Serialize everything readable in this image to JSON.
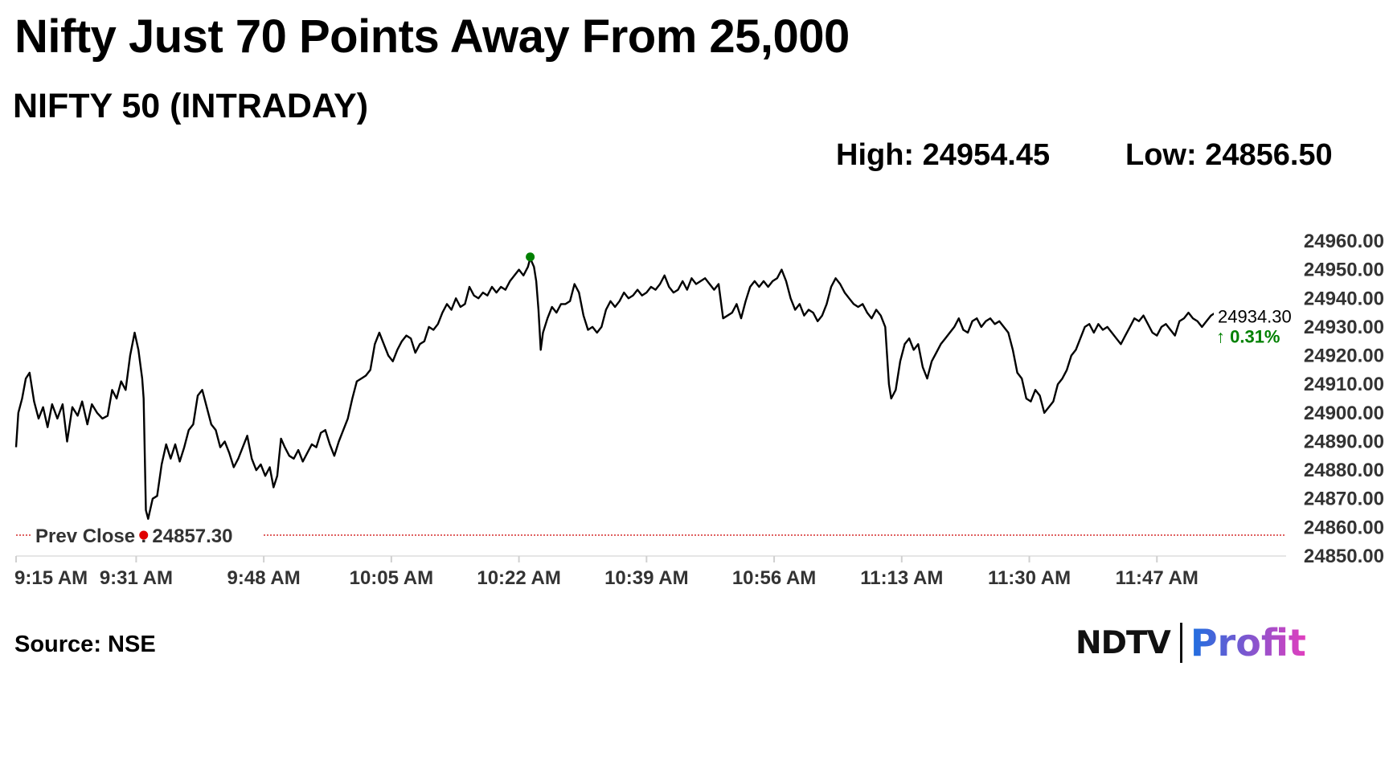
{
  "headline": "Nifty Just 70 Points Away From 25,000",
  "subtitle": "NIFTY 50 (INTRADAY)",
  "stats": {
    "high": "High: 24954.45",
    "low": "Low: 24856.50"
  },
  "source": "Source: NSE",
  "logo": {
    "left": "NDTV",
    "right": "Profit"
  },
  "colors": {
    "line": "#000000",
    "prev_close": "#cc0000",
    "high_marker": "#008000",
    "low_marker": "#e00000",
    "last_marker": "#1a1ad6",
    "change_up": "#008000",
    "profit_gradient": [
      "#1e6fe0",
      "#e23fbe"
    ]
  },
  "chart_data": {
    "type": "line",
    "title": "NIFTY 50 (INTRADAY)",
    "xlabel": "",
    "ylabel": "",
    "ylim": [
      24850,
      24960
    ],
    "y_ticks": [
      "24960.00",
      "24950.00",
      "24940.00",
      "24930.00",
      "24920.00",
      "24910.00",
      "24900.00",
      "24890.00",
      "24880.00",
      "24870.00",
      "24860.00",
      "24850.00"
    ],
    "x_ticks": [
      "9:15 AM",
      "9:31 AM",
      "9:48 AM",
      "10:05 AM",
      "10:22 AM",
      "10:39 AM",
      "10:56 AM",
      "11:13 AM",
      "11:30 AM",
      "11:47 AM"
    ],
    "x_tick_minutes": [
      0,
      16,
      33,
      50,
      67,
      84,
      101,
      118,
      135,
      152
    ],
    "x_range_minutes": [
      0,
      169
    ],
    "prev_close": {
      "label": "Prev Close : 24857.30",
      "value": 24857.3,
      "minute": 17
    },
    "high": {
      "value": 24954.45,
      "minute": 68.5
    },
    "low": {
      "value": 24856.5,
      "minute": 17.3
    },
    "last": {
      "value": 24934.3,
      "label": "24934.30",
      "change": "↑ 0.31%",
      "minute": 169
    },
    "grid": false,
    "series": [
      {
        "points": [
          [
            0,
            24888
          ],
          [
            0.3,
            24900
          ],
          [
            0.8,
            24905
          ],
          [
            1.3,
            24912
          ],
          [
            1.8,
            24914
          ],
          [
            2.4,
            24904
          ],
          [
            3,
            24898
          ],
          [
            3.6,
            24902
          ],
          [
            4.2,
            24895
          ],
          [
            4.8,
            24903
          ],
          [
            5.5,
            24898
          ],
          [
            6.2,
            24903
          ],
          [
            6.8,
            24890
          ],
          [
            7.5,
            24902
          ],
          [
            8.2,
            24899
          ],
          [
            8.8,
            24904
          ],
          [
            9.5,
            24896
          ],
          [
            10.1,
            24903
          ],
          [
            10.8,
            24900
          ],
          [
            11.5,
            24898
          ],
          [
            12.2,
            24899
          ],
          [
            12.8,
            24908
          ],
          [
            13.4,
            24905
          ],
          [
            14,
            24911
          ],
          [
            14.6,
            24908
          ],
          [
            15.2,
            24920
          ],
          [
            15.8,
            24928
          ],
          [
            16.3,
            24922
          ],
          [
            16.8,
            24912
          ],
          [
            17,
            24905
          ],
          [
            17.3,
            24866
          ],
          [
            17.6,
            24863
          ],
          [
            18.2,
            24870
          ],
          [
            18.8,
            24871
          ],
          [
            19.4,
            24882
          ],
          [
            20,
            24889
          ],
          [
            20.6,
            24884
          ],
          [
            21.2,
            24889
          ],
          [
            21.8,
            24883
          ],
          [
            22.4,
            24888
          ],
          [
            23,
            24894
          ],
          [
            23.6,
            24896
          ],
          [
            24.2,
            24906
          ],
          [
            24.8,
            24908
          ],
          [
            25.4,
            24902
          ],
          [
            26,
            24896
          ],
          [
            26.6,
            24894
          ],
          [
            27.2,
            24888
          ],
          [
            27.8,
            24890
          ],
          [
            28.4,
            24886
          ],
          [
            29,
            24881
          ],
          [
            29.6,
            24884
          ],
          [
            30.2,
            24888
          ],
          [
            30.8,
            24892
          ],
          [
            31.4,
            24884
          ],
          [
            32,
            24880
          ],
          [
            32.6,
            24882
          ],
          [
            33.2,
            24878
          ],
          [
            33.8,
            24881
          ],
          [
            34.3,
            24874
          ],
          [
            34.8,
            24878
          ],
          [
            35.3,
            24891
          ],
          [
            35.8,
            24888
          ],
          [
            36.4,
            24885
          ],
          [
            37,
            24884
          ],
          [
            37.6,
            24887
          ],
          [
            38.2,
            24883
          ],
          [
            38.8,
            24886
          ],
          [
            39.4,
            24889
          ],
          [
            40,
            24888
          ],
          [
            40.6,
            24893
          ],
          [
            41.2,
            24894
          ],
          [
            41.8,
            24889
          ],
          [
            42.4,
            24885
          ],
          [
            43,
            24890
          ],
          [
            43.6,
            24894
          ],
          [
            44.2,
            24898
          ],
          [
            44.8,
            24905
          ],
          [
            45.4,
            24911
          ],
          [
            46,
            24912
          ],
          [
            46.6,
            24913
          ],
          [
            47.2,
            24915
          ],
          [
            47.8,
            24924
          ],
          [
            48.4,
            24928
          ],
          [
            49,
            24924
          ],
          [
            49.6,
            24920
          ],
          [
            50.2,
            24918
          ],
          [
            50.8,
            24922
          ],
          [
            51.4,
            24925
          ],
          [
            52,
            24927
          ],
          [
            52.6,
            24926
          ],
          [
            53.2,
            24921
          ],
          [
            53.8,
            24924
          ],
          [
            54.4,
            24925
          ],
          [
            55,
            24930
          ],
          [
            55.6,
            24929
          ],
          [
            56.2,
            24931
          ],
          [
            56.8,
            24935
          ],
          [
            57.4,
            24938
          ],
          [
            58,
            24936
          ],
          [
            58.6,
            24940
          ],
          [
            59.2,
            24937
          ],
          [
            59.8,
            24938
          ],
          [
            60.4,
            24944
          ],
          [
            61,
            24941
          ],
          [
            61.6,
            24940
          ],
          [
            62.2,
            24942
          ],
          [
            62.8,
            24941
          ],
          [
            63.4,
            24944
          ],
          [
            64,
            24942
          ],
          [
            64.6,
            24944
          ],
          [
            65.2,
            24943
          ],
          [
            65.8,
            24946
          ],
          [
            66.4,
            24948
          ],
          [
            67,
            24950
          ],
          [
            67.6,
            24948
          ],
          [
            68.2,
            24951
          ],
          [
            68.5,
            24954
          ],
          [
            69,
            24951
          ],
          [
            69.3,
            24946
          ],
          [
            69.6,
            24936
          ],
          [
            69.9,
            24922
          ],
          [
            70.2,
            24928
          ],
          [
            70.8,
            24933
          ],
          [
            71.4,
            24937
          ],
          [
            72,
            24935
          ],
          [
            72.6,
            24938
          ],
          [
            73.2,
            24938
          ],
          [
            73.8,
            24939
          ],
          [
            74.4,
            24945
          ],
          [
            75,
            24942
          ],
          [
            75.6,
            24934
          ],
          [
            76.2,
            24929
          ],
          [
            76.8,
            24930
          ],
          [
            77.4,
            24928
          ],
          [
            78,
            24930
          ],
          [
            78.6,
            24936
          ],
          [
            79.2,
            24939
          ],
          [
            79.8,
            24937
          ],
          [
            80.4,
            24939
          ],
          [
            81,
            24942
          ],
          [
            81.6,
            24940
          ],
          [
            82.2,
            24941
          ],
          [
            82.8,
            24943
          ],
          [
            83.4,
            24941
          ],
          [
            84,
            24942
          ],
          [
            84.6,
            24944
          ],
          [
            85.2,
            24943
          ],
          [
            85.8,
            24945
          ],
          [
            86.4,
            24948
          ],
          [
            87,
            24944
          ],
          [
            87.6,
            24942
          ],
          [
            88.2,
            24943
          ],
          [
            88.8,
            24946
          ],
          [
            89.4,
            24943
          ],
          [
            90,
            24947
          ],
          [
            90.6,
            24945
          ],
          [
            91.2,
            24946
          ],
          [
            91.8,
            24947
          ],
          [
            92.4,
            24945
          ],
          [
            93,
            24943
          ],
          [
            93.6,
            24945
          ],
          [
            94.2,
            24933
          ],
          [
            94.8,
            24934
          ],
          [
            95.4,
            24935
          ],
          [
            96,
            24938
          ],
          [
            96.6,
            24933
          ],
          [
            97.2,
            24939
          ],
          [
            97.8,
            24944
          ],
          [
            98.4,
            24946
          ],
          [
            99,
            24944
          ],
          [
            99.6,
            24946
          ],
          [
            100.2,
            24944
          ],
          [
            100.8,
            24946
          ],
          [
            101.4,
            24947
          ],
          [
            102,
            24950
          ],
          [
            102.6,
            24946
          ],
          [
            103.2,
            24940
          ],
          [
            103.8,
            24936
          ],
          [
            104.4,
            24938
          ],
          [
            105,
            24934
          ],
          [
            105.6,
            24936
          ],
          [
            106.2,
            24935
          ],
          [
            106.8,
            24932
          ],
          [
            107.4,
            24934
          ],
          [
            108,
            24938
          ],
          [
            108.6,
            24944
          ],
          [
            109.2,
            24947
          ],
          [
            109.8,
            24945
          ],
          [
            110.4,
            24942
          ],
          [
            111,
            24940
          ],
          [
            111.6,
            24938
          ],
          [
            112.2,
            24937
          ],
          [
            112.8,
            24938
          ],
          [
            113.4,
            24935
          ],
          [
            114,
            24933
          ],
          [
            114.6,
            24936
          ],
          [
            115.2,
            24934
          ],
          [
            115.8,
            24930
          ],
          [
            116.3,
            24910
          ],
          [
            116.6,
            24905
          ],
          [
            117.2,
            24908
          ],
          [
            117.8,
            24918
          ],
          [
            118.4,
            24924
          ],
          [
            119,
            24926
          ],
          [
            119.6,
            24922
          ],
          [
            120.2,
            24924
          ],
          [
            120.8,
            24916
          ],
          [
            121.4,
            24912
          ],
          [
            122,
            24918
          ],
          [
            122.6,
            24921
          ],
          [
            123.2,
            24924
          ],
          [
            123.8,
            24926
          ],
          [
            124.4,
            24928
          ],
          [
            125,
            24930
          ],
          [
            125.6,
            24933
          ],
          [
            126.2,
            24929
          ],
          [
            126.8,
            24928
          ],
          [
            127.4,
            24932
          ],
          [
            128,
            24933
          ],
          [
            128.6,
            24930
          ],
          [
            129.2,
            24932
          ],
          [
            129.8,
            24933
          ],
          [
            130.4,
            24931
          ],
          [
            131,
            24932
          ],
          [
            131.6,
            24930
          ],
          [
            132.2,
            24928
          ],
          [
            132.8,
            24922
          ],
          [
            133.4,
            24914
          ],
          [
            134,
            24912
          ],
          [
            134.6,
            24905
          ],
          [
            135.2,
            24904
          ],
          [
            135.8,
            24908
          ],
          [
            136.4,
            24906
          ],
          [
            137,
            24900
          ],
          [
            137.6,
            24902
          ],
          [
            138.2,
            24904
          ],
          [
            138.8,
            24910
          ],
          [
            139.4,
            24912
          ],
          [
            140,
            24915
          ],
          [
            140.6,
            24920
          ],
          [
            141.2,
            24922
          ],
          [
            141.8,
            24926
          ],
          [
            142.4,
            24930
          ],
          [
            143,
            24931
          ],
          [
            143.6,
            24928
          ],
          [
            144.2,
            24931
          ],
          [
            144.8,
            24929
          ],
          [
            145.4,
            24930
          ],
          [
            146,
            24928
          ],
          [
            146.6,
            24926
          ],
          [
            147.2,
            24924
          ],
          [
            147.8,
            24927
          ],
          [
            148.4,
            24930
          ],
          [
            149,
            24933
          ],
          [
            149.6,
            24932
          ],
          [
            150.2,
            24934
          ],
          [
            150.8,
            24931
          ],
          [
            151.4,
            24928
          ],
          [
            152,
            24927
          ],
          [
            152.6,
            24930
          ],
          [
            153.2,
            24931
          ],
          [
            153.8,
            24929
          ],
          [
            154.4,
            24927
          ],
          [
            155,
            24932
          ],
          [
            155.6,
            24933
          ],
          [
            156.2,
            24935
          ],
          [
            156.8,
            24933
          ],
          [
            157.4,
            24932
          ],
          [
            158,
            24930
          ],
          [
            158.6,
            24932
          ],
          [
            159.2,
            24934
          ],
          [
            159.8,
            24935
          ],
          [
            160.4,
            24933
          ],
          [
            161,
            24936
          ],
          [
            161.6,
            24934
          ],
          [
            162.2,
            24931
          ],
          [
            162.8,
            24934
          ],
          [
            163.4,
            24932
          ],
          [
            164,
            24935
          ],
          [
            164.6,
            24934
          ],
          [
            165.2,
            24932
          ],
          [
            165.8,
            24934
          ],
          [
            166.4,
            24935
          ],
          [
            167,
            24932
          ],
          [
            167.6,
            24934
          ],
          [
            168.2,
            24935
          ],
          [
            169,
            24934.3
          ]
        ]
      }
    ]
  }
}
